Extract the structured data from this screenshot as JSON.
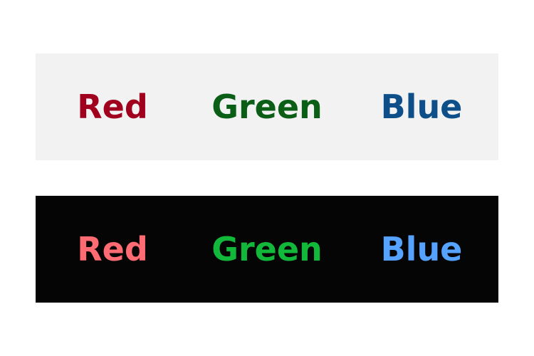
{
  "light_panel": {
    "background": "#f2f2f2",
    "words": [
      {
        "label": "Red",
        "color": "#a0001e"
      },
      {
        "label": "Green",
        "color": "#0a5e16"
      },
      {
        "label": "Blue",
        "color": "#0e4f8a"
      }
    ]
  },
  "dark_panel": {
    "background": "#050505",
    "words": [
      {
        "label": "Red",
        "color": "#ff6b73"
      },
      {
        "label": "Green",
        "color": "#12b83a"
      },
      {
        "label": "Blue",
        "color": "#56a2ff"
      }
    ]
  }
}
